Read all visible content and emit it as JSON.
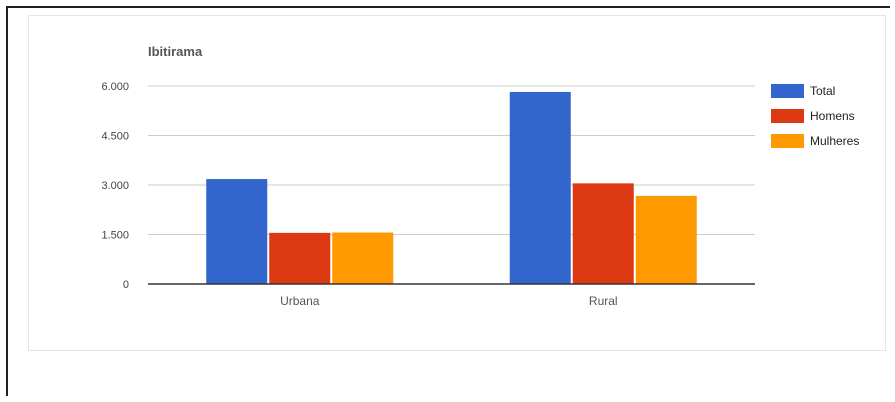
{
  "chart_data": {
    "type": "bar",
    "title": "Ibitirama",
    "xlabel": "",
    "ylabel": "",
    "categories": [
      "Urbana",
      "Rural"
    ],
    "series": [
      {
        "name": "Total",
        "values": [
          3180,
          5820
        ],
        "color": "#3366cc"
      },
      {
        "name": "Homens",
        "values": [
          1550,
          3050
        ],
        "color": "#dc3912"
      },
      {
        "name": "Mulheres",
        "values": [
          1560,
          2670
        ],
        "color": "#ff9900"
      }
    ],
    "ylim": [
      0,
      6000
    ],
    "yticks": [
      0,
      1500,
      3000,
      4500,
      6000
    ],
    "ytick_labels": [
      "0",
      "1.500",
      "3.000",
      "4.500",
      "6.000"
    ],
    "grid": true,
    "legend": "right"
  }
}
